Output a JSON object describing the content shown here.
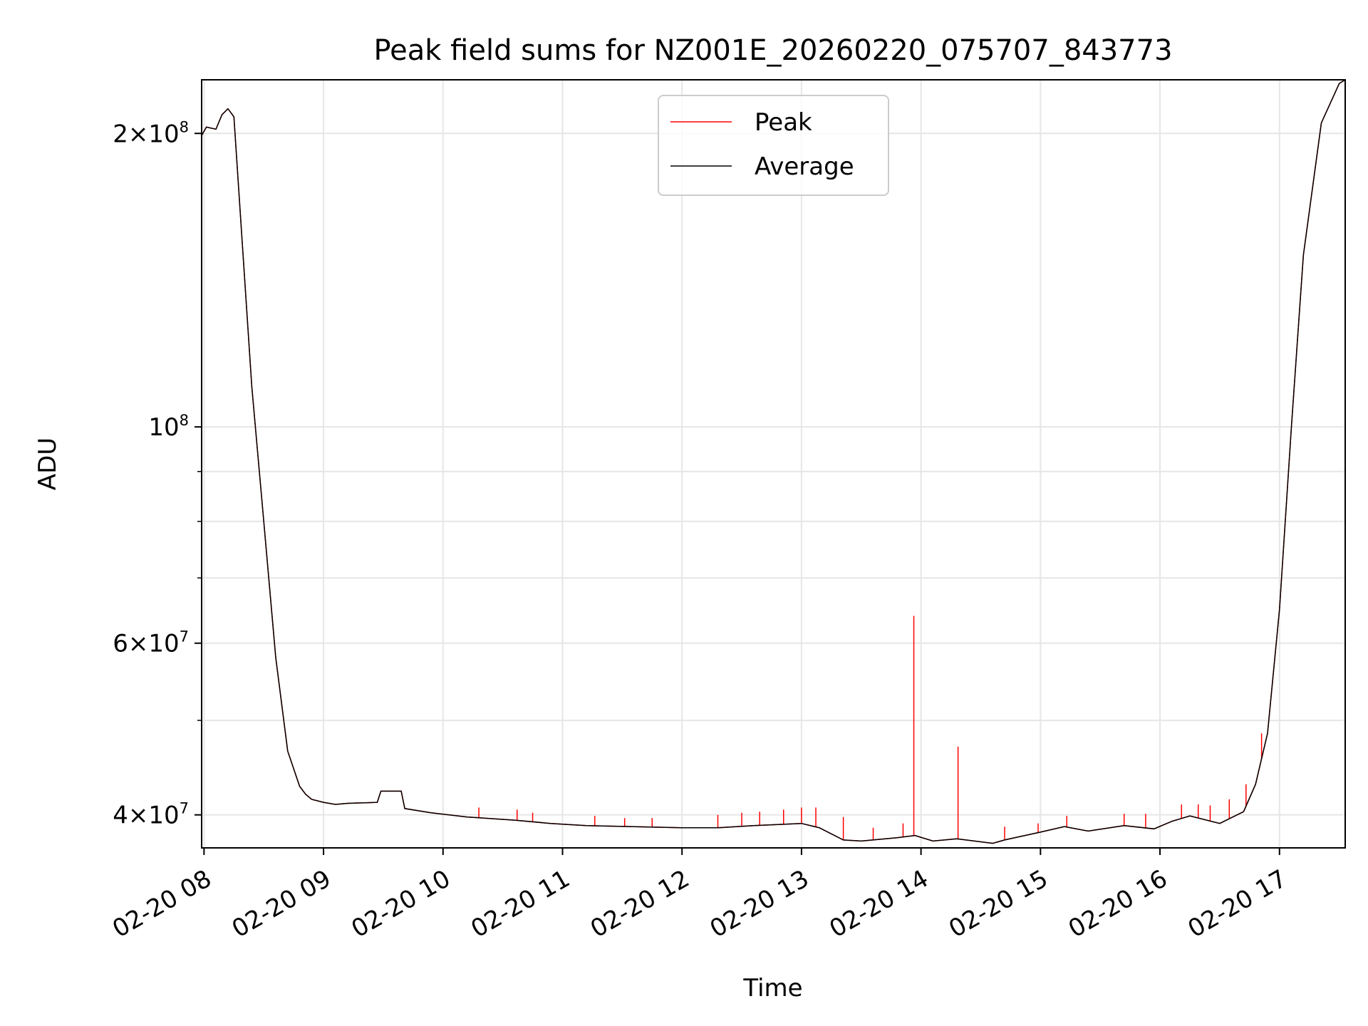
{
  "chart_data": {
    "type": "line",
    "title": "Peak field sums for NZ001E_20260220_075707_843773",
    "xlabel": "Time",
    "ylabel": "ADU",
    "yscale": "log",
    "grid": true,
    "legend_position": "upper center",
    "xlim": [
      7.98,
      17.55
    ],
    "ylim": [
      37000000,
      227000000
    ],
    "x_unit": "hours of day, 2026-02-20",
    "x_ticks": [
      {
        "value": 8,
        "label": "02-20 08"
      },
      {
        "value": 9,
        "label": "02-20 09"
      },
      {
        "value": 10,
        "label": "02-20 10"
      },
      {
        "value": 11,
        "label": "02-20 11"
      },
      {
        "value": 12,
        "label": "02-20 12"
      },
      {
        "value": 13,
        "label": "02-20 13"
      },
      {
        "value": 14,
        "label": "02-20 14"
      },
      {
        "value": 15,
        "label": "02-20 15"
      },
      {
        "value": 16,
        "label": "02-20 16"
      },
      {
        "value": 17,
        "label": "02-20 17"
      }
    ],
    "y_major_ticks": [
      {
        "value": 40000000,
        "mantissa": "4",
        "times": "×",
        "base": "10",
        "exp": "7"
      },
      {
        "value": 60000000,
        "mantissa": "6",
        "times": "×",
        "base": "10",
        "exp": "7"
      },
      {
        "value": 100000000,
        "mantissa": "",
        "times": "",
        "base": "10",
        "exp": "8"
      },
      {
        "value": 200000000,
        "mantissa": "2",
        "times": "×",
        "base": "10",
        "exp": "8"
      }
    ],
    "y_minor_ticks": [
      50000000,
      70000000,
      80000000,
      90000000
    ],
    "series": [
      {
        "name": "Peak",
        "color": "#ff0000",
        "x": [
          7.98,
          8.02,
          8.1,
          8.15,
          8.2,
          8.25,
          8.3,
          8.4,
          8.5,
          8.6,
          8.7,
          8.8,
          8.85,
          8.9,
          9.0,
          9.1,
          9.2,
          9.45,
          9.48,
          9.65,
          9.68,
          9.9,
          10.2,
          10.6,
          10.9,
          11.2,
          11.6,
          12.0,
          12.3,
          12.6,
          13.0,
          13.15,
          13.35,
          13.5,
          13.8,
          13.95,
          14.1,
          14.3,
          14.6,
          14.7,
          15.0,
          15.2,
          15.4,
          15.7,
          15.95,
          16.1,
          16.25,
          16.5,
          16.7,
          16.8,
          16.9,
          17.0,
          17.1,
          17.2,
          17.35,
          17.5,
          17.55
        ],
        "values": [
          199000000,
          203000000,
          202000000,
          209000000,
          212000000,
          208000000,
          168000000,
          110000000,
          80000000,
          58000000,
          46500000,
          42800000,
          42000000,
          41500000,
          41200000,
          41000000,
          41100000,
          41200000,
          42300000,
          42300000,
          40600000,
          40200000,
          39800000,
          39500000,
          39200000,
          39000000,
          38900000,
          38800000,
          38800000,
          39000000,
          39200000,
          38800000,
          37700000,
          37600000,
          37900000,
          38100000,
          37600000,
          37800000,
          37400000,
          37700000,
          38400000,
          38900000,
          38500000,
          39000000,
          38700000,
          39400000,
          39900000,
          39200000,
          40300000,
          43000000,
          48500000,
          65000000,
          100000000,
          150000000,
          205000000,
          225000000,
          227000000
        ],
        "spikes": [
          {
            "x": 13.94,
            "value": 64000000
          },
          {
            "x": 14.31,
            "value": 47000000
          },
          {
            "x": 10.3,
            "value": 40700000
          },
          {
            "x": 10.62,
            "value": 40500000
          },
          {
            "x": 10.75,
            "value": 40200000
          },
          {
            "x": 11.27,
            "value": 39900000
          },
          {
            "x": 11.52,
            "value": 39700000
          },
          {
            "x": 11.75,
            "value": 39700000
          },
          {
            "x": 12.3,
            "value": 40000000
          },
          {
            "x": 12.5,
            "value": 40200000
          },
          {
            "x": 12.65,
            "value": 40300000
          },
          {
            "x": 12.85,
            "value": 40500000
          },
          {
            "x": 13.0,
            "value": 40700000
          },
          {
            "x": 13.12,
            "value": 40700000
          },
          {
            "x": 13.35,
            "value": 39800000
          },
          {
            "x": 13.6,
            "value": 38800000
          },
          {
            "x": 13.85,
            "value": 39200000
          },
          {
            "x": 14.7,
            "value": 38900000
          },
          {
            "x": 14.98,
            "value": 39200000
          },
          {
            "x": 15.22,
            "value": 39900000
          },
          {
            "x": 15.7,
            "value": 40100000
          },
          {
            "x": 15.88,
            "value": 40100000
          },
          {
            "x": 16.18,
            "value": 41000000
          },
          {
            "x": 16.32,
            "value": 41000000
          },
          {
            "x": 16.42,
            "value": 40900000
          },
          {
            "x": 16.58,
            "value": 41500000
          },
          {
            "x": 16.72,
            "value": 43000000
          },
          {
            "x": 16.85,
            "value": 48500000
          }
        ]
      },
      {
        "name": "Average",
        "color": "#000000",
        "x": [
          7.98,
          8.02,
          8.1,
          8.15,
          8.2,
          8.25,
          8.3,
          8.4,
          8.5,
          8.6,
          8.7,
          8.8,
          8.85,
          8.9,
          9.0,
          9.1,
          9.2,
          9.45,
          9.48,
          9.65,
          9.68,
          9.9,
          10.2,
          10.6,
          10.9,
          11.2,
          11.6,
          12.0,
          12.3,
          12.6,
          13.0,
          13.15,
          13.35,
          13.5,
          13.8,
          13.95,
          14.1,
          14.3,
          14.6,
          14.7,
          15.0,
          15.2,
          15.4,
          15.7,
          15.95,
          16.1,
          16.25,
          16.5,
          16.7,
          16.8,
          16.9,
          17.0,
          17.1,
          17.2,
          17.35,
          17.5,
          17.55
        ],
        "values": [
          199000000,
          203000000,
          202000000,
          209000000,
          212000000,
          208000000,
          168000000,
          110000000,
          80000000,
          58000000,
          46500000,
          42800000,
          42000000,
          41500000,
          41200000,
          41000000,
          41100000,
          41200000,
          42300000,
          42300000,
          40600000,
          40200000,
          39800000,
          39500000,
          39200000,
          39000000,
          38900000,
          38800000,
          38800000,
          39000000,
          39200000,
          38800000,
          37700000,
          37600000,
          37900000,
          38100000,
          37600000,
          37800000,
          37400000,
          37700000,
          38400000,
          38900000,
          38500000,
          39000000,
          38700000,
          39400000,
          39900000,
          39200000,
          40300000,
          43000000,
          48500000,
          65000000,
          100000000,
          150000000,
          205000000,
          225000000,
          227000000
        ]
      }
    ]
  }
}
